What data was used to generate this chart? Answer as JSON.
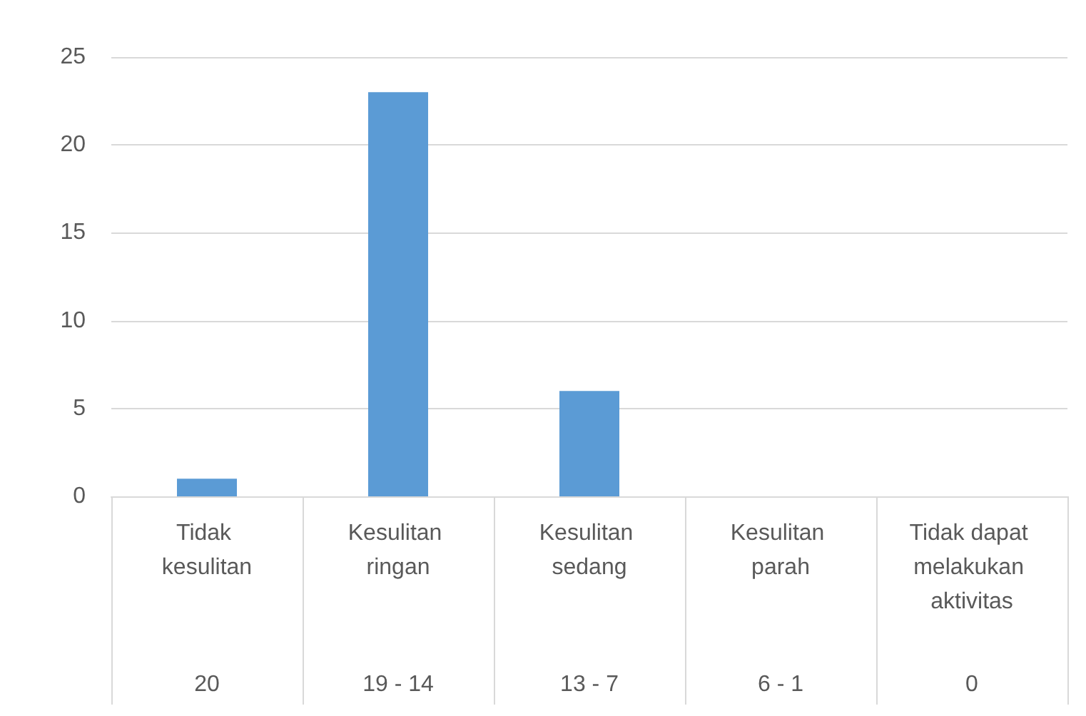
{
  "chart_data": {
    "type": "bar",
    "categories": [
      "Tidak kesulitan",
      "Kesulitan ringan",
      "Kesulitan sedang",
      "Kesulitan parah",
      "Tidak dapat melakukan aktivitas"
    ],
    "values": [
      1,
      23,
      6,
      0,
      0
    ],
    "color": "#5b9bd5",
    "ylim": [
      0,
      25
    ],
    "yticks": [
      0,
      5,
      10,
      15,
      20,
      25
    ],
    "grid": "y",
    "annotations": [
      "20",
      "19 - 14",
      "13 - 7",
      "6 - 1",
      "0"
    ]
  }
}
